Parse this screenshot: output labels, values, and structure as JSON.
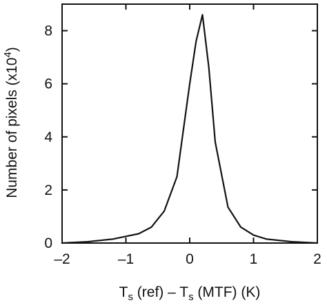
{
  "chart_data": {
    "type": "line",
    "title": "",
    "xlabel": {
      "parts": [
        "T",
        "s",
        " (ref) – T",
        "s",
        " (MTF) (K)"
      ]
    },
    "ylabel": {
      "main": "Number of pixels (x10",
      "exponent": "4",
      "closing": ")"
    },
    "xlim": [
      -2,
      2
    ],
    "ylim": [
      0,
      9
    ],
    "xticks": [
      -2,
      -1,
      0,
      1,
      2
    ],
    "xtick_labels": [
      "–2",
      "–1",
      "0",
      "1",
      "2"
    ],
    "yticks": [
      0,
      2,
      4,
      6,
      8
    ],
    "ytick_labels": [
      "0",
      "2",
      "4",
      "6",
      "8"
    ],
    "grid": false,
    "series": [
      {
        "x": [
          -2.0,
          -1.6,
          -1.2,
          -1.0,
          -0.8,
          -0.6,
          -0.4,
          -0.2,
          0.0,
          0.1,
          0.2,
          0.3,
          0.4,
          0.6,
          0.8,
          1.0,
          1.2,
          1.6,
          2.0
        ],
        "y": [
          0.0,
          0.05,
          0.15,
          0.25,
          0.35,
          0.6,
          1.2,
          2.5,
          6.0,
          7.6,
          8.6,
          6.6,
          3.8,
          1.35,
          0.6,
          0.3,
          0.15,
          0.05,
          0.0
        ]
      }
    ]
  }
}
